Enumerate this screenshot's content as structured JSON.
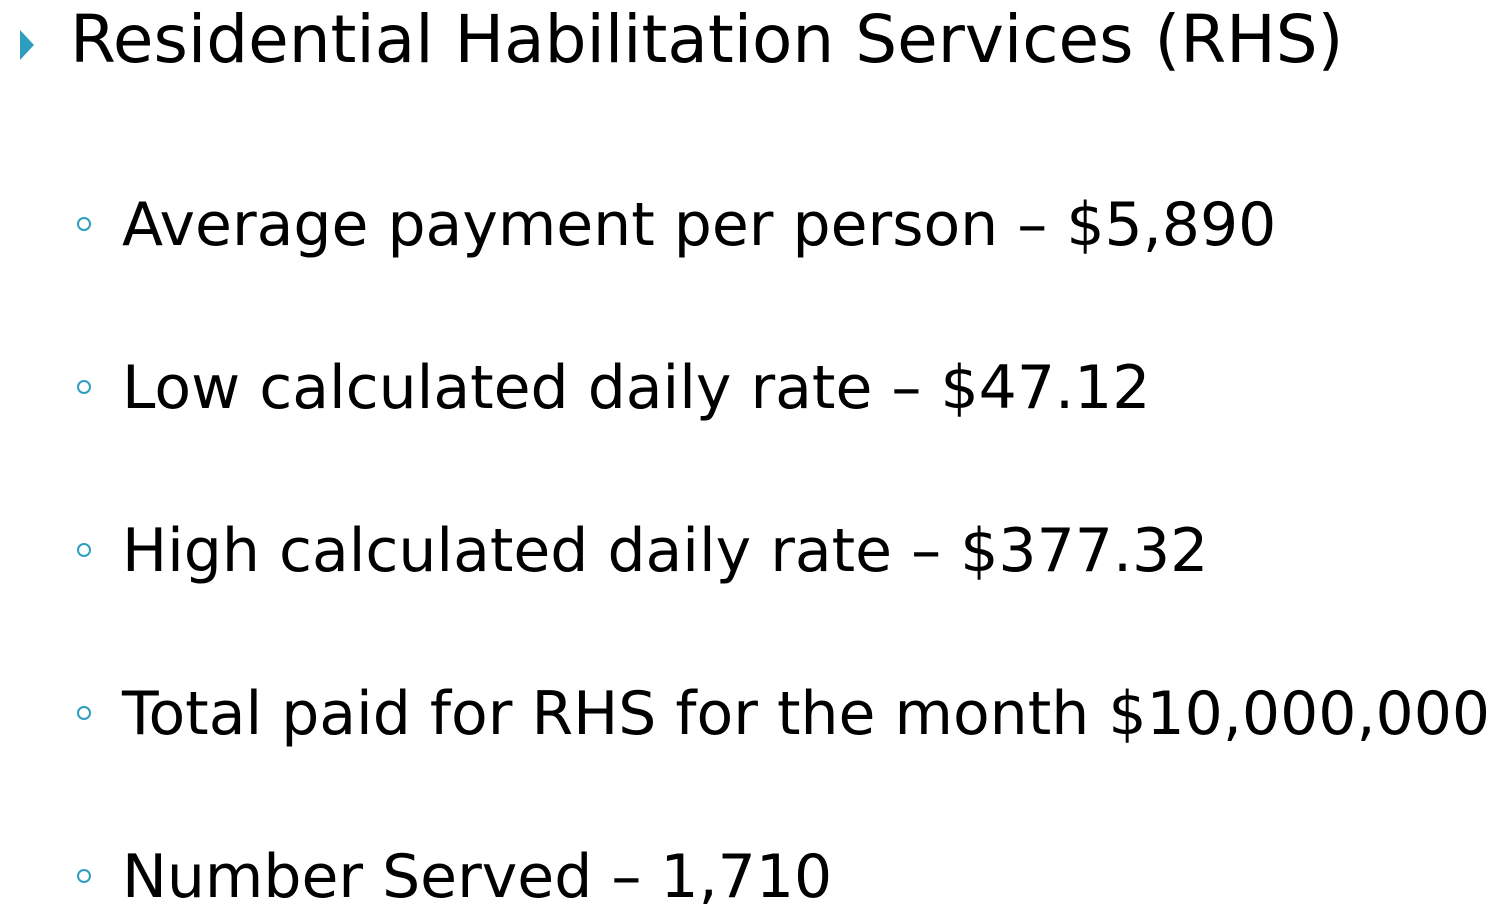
{
  "title": "Residential Habilitation Services (RHS)",
  "bullets": [
    "Average payment per person – $5,890",
    "Low calculated daily rate – $47.12",
    "High calculated daily rate – $377.32",
    "Total paid for RHS for the month $10,000,000",
    "Number Served – 1,710"
  ]
}
